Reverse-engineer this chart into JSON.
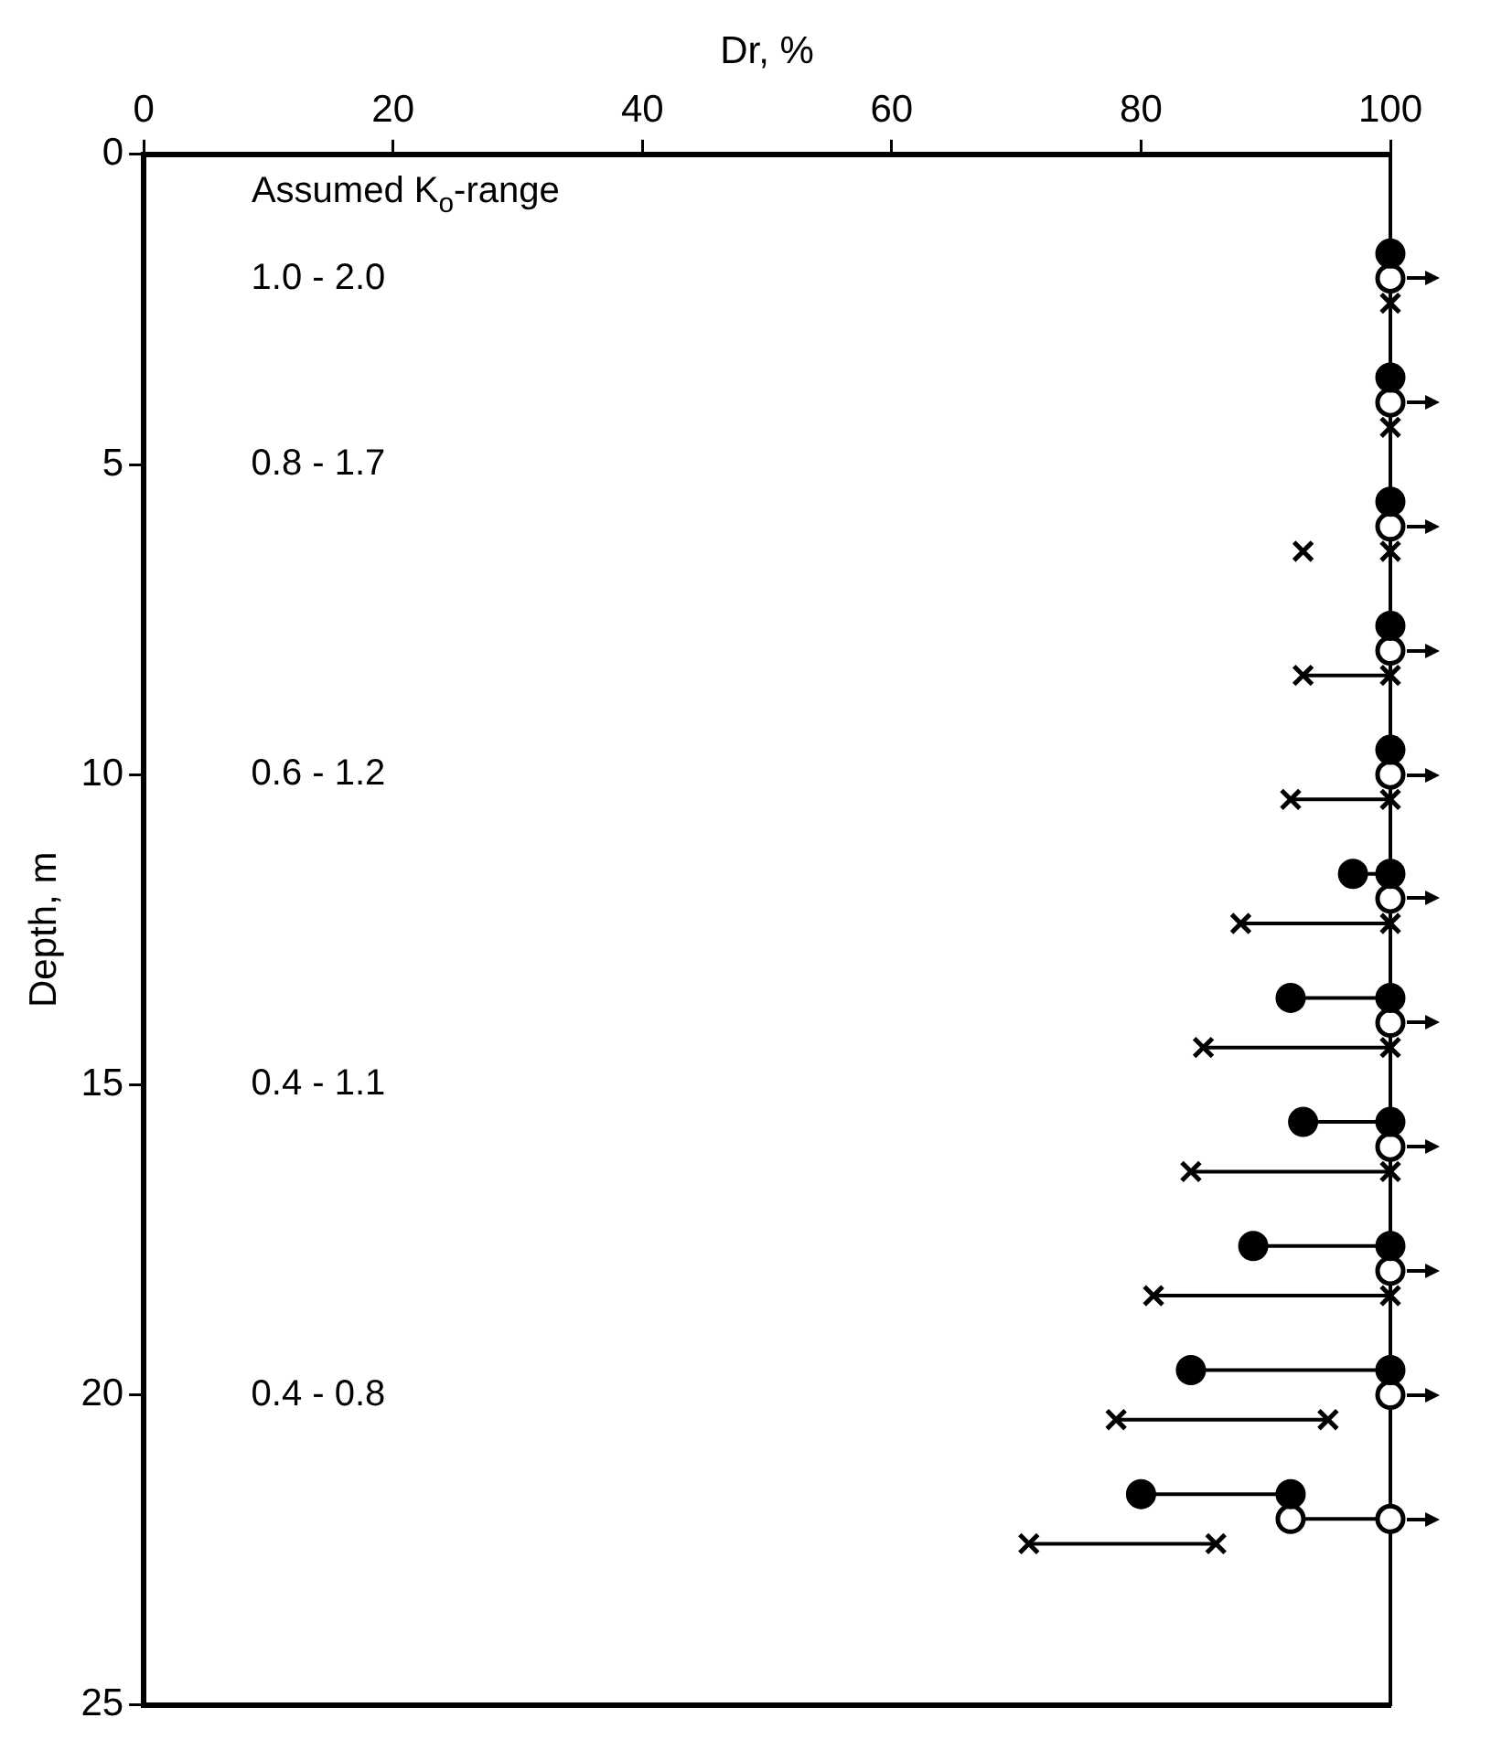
{
  "chart_data": {
    "type": "line",
    "xlabel": "Dr, %",
    "ylabel": "Depth, m",
    "xlim": [
      0,
      100
    ],
    "xticks": [
      0,
      20,
      40,
      60,
      80,
      100
    ],
    "ylim": [
      25,
      0
    ],
    "yticks": [
      0,
      5,
      10,
      15,
      20,
      25
    ],
    "grid": false,
    "legend": false,
    "line_style": "solid",
    "annotations": [
      "Assumed K$_{o}$-range",
      "1.0 - 2.0",
      "0.8 - 1.7",
      "0.6 - 1.2",
      "0.4 - 1.1",
      "0.4 - 0.8"
    ],
    "series": [
      {
        "color": "#000000",
        "marker": "circle",
        "x": [
          100,
          null,
          100,
          null,
          100,
          null,
          100,
          null,
          100,
          null,
          97,
          100,
          null,
          92,
          100,
          null,
          93,
          100,
          null,
          89,
          100,
          null,
          84,
          100,
          null,
          80,
          92
        ],
        "values": [
          1.6,
          null,
          3.6,
          null,
          5.6,
          null,
          7.6,
          null,
          9.6,
          null,
          11.6,
          11.6,
          null,
          13.6,
          13.6,
          null,
          15.6,
          15.6,
          null,
          17.6,
          17.6,
          null,
          19.6,
          19.6,
          null,
          21.6,
          21.6
        ]
      },
      {
        "color": "#000000",
        "marker": "circle",
        "x": [
          100,
          null,
          100,
          null,
          100,
          null,
          100,
          null,
          100,
          null,
          100,
          null,
          100,
          null,
          100,
          null,
          100,
          null,
          100,
          null,
          92,
          100
        ],
        "values": [
          2,
          null,
          4,
          null,
          6,
          null,
          8,
          null,
          10,
          null,
          12,
          null,
          14,
          null,
          16,
          null,
          18,
          null,
          20,
          null,
          22,
          22
        ]
      },
      {
        "color": "#000000",
        "marker": "cross",
        "x": [
          100,
          null,
          100,
          null,
          93,
          null,
          100,
          null,
          93,
          100,
          null,
          92,
          100,
          null,
          88,
          100,
          null,
          85,
          100,
          null,
          84,
          100,
          null,
          81,
          100,
          null,
          78,
          95,
          null,
          71,
          86
        ],
        "values": [
          2.4,
          null,
          4.4,
          null,
          6.4,
          null,
          6.4,
          null,
          8.4,
          8.4,
          null,
          10.4,
          10.4,
          null,
          12.4,
          12.4,
          null,
          14.4,
          14.4,
          null,
          16.4,
          16.4,
          null,
          18.4,
          18.4,
          null,
          20.4,
          20.4,
          null,
          22.4,
          22.4
        ]
      }
    ]
  }
}
